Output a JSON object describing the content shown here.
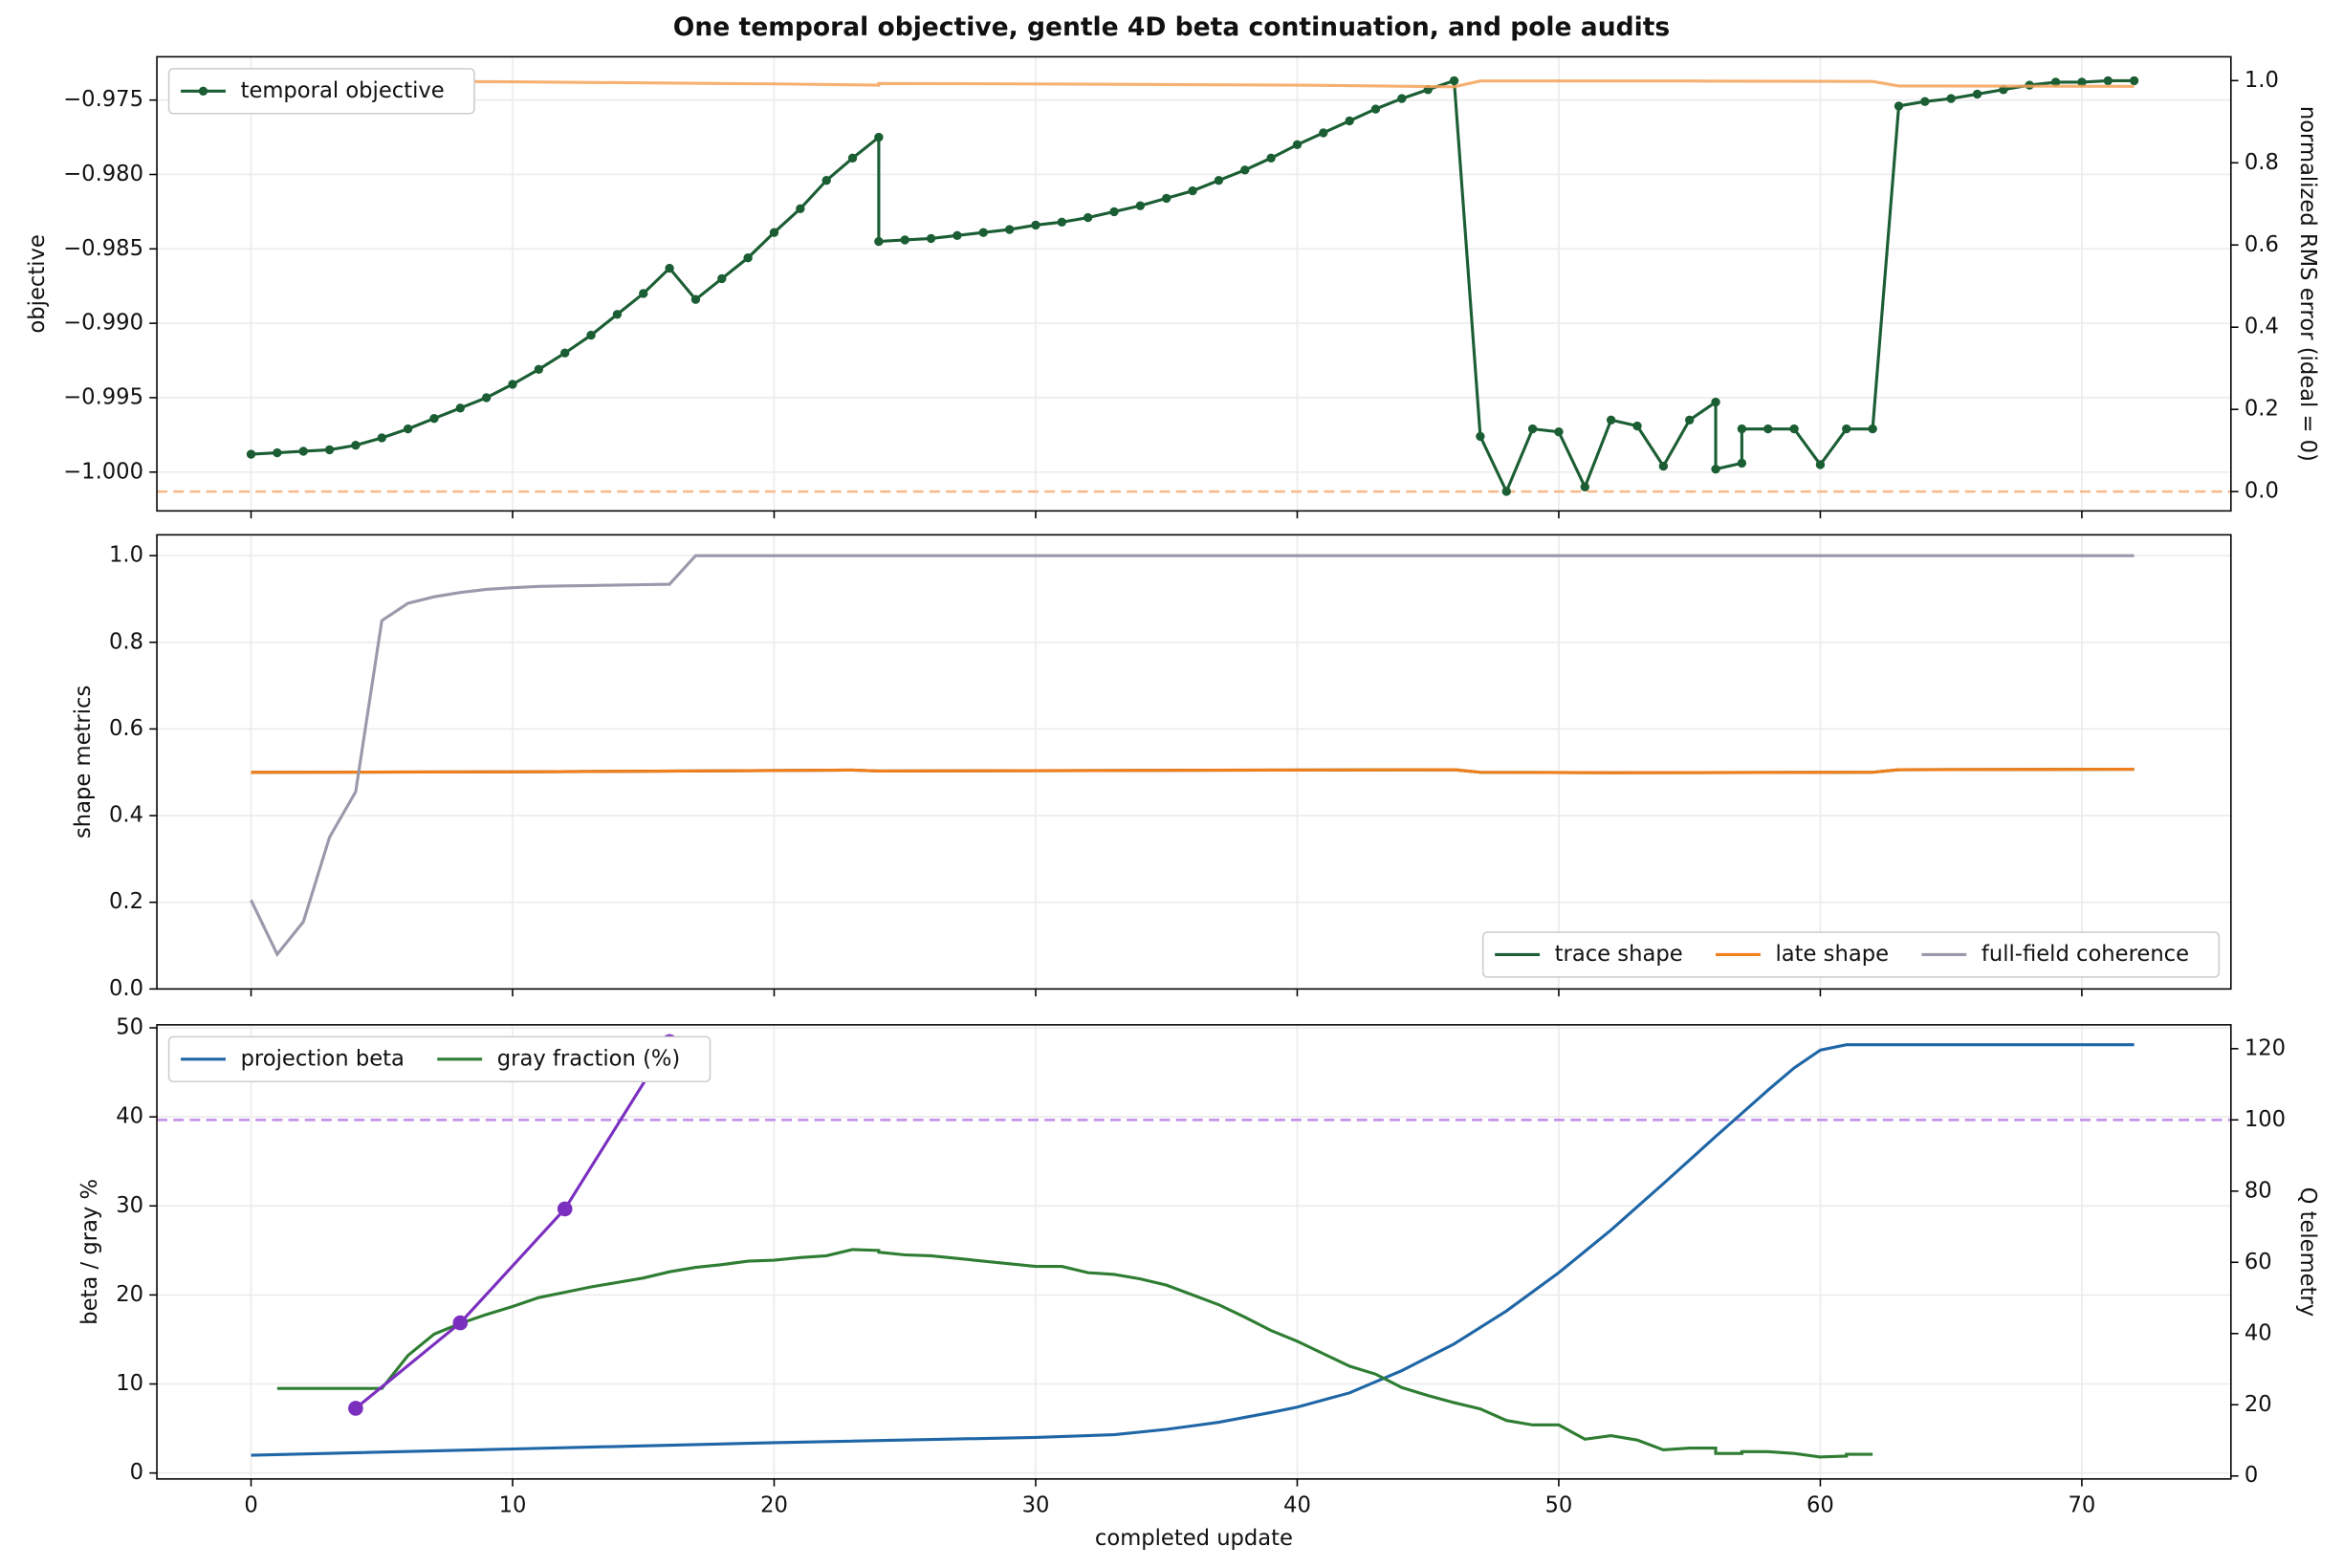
{
  "chart_data": [
    {
      "type": "line",
      "title": "One temporal objective, gentle 4D beta continuation, and pole audits",
      "ylabel": "objective",
      "y2label": "normalized RMS error (ideal = 0)",
      "xlim": [
        -3.6,
        75.7
      ],
      "xticks": [
        0,
        10,
        20,
        30,
        40,
        50,
        60,
        70
      ],
      "xtick_labels": false,
      "ylim": [
        -1.00261,
        -0.97209
      ],
      "yticks": [
        {
          "value": -0.975,
          "label": "−0.975"
        },
        {
          "value": -0.98,
          "label": "−0.980"
        },
        {
          "value": -0.985,
          "label": "−0.985"
        },
        {
          "value": -0.99,
          "label": "−0.990"
        },
        {
          "value": -0.995,
          "label": "−0.995"
        },
        {
          "value": -1.0,
          "label": "−1.000"
        }
      ],
      "y2lim": [
        -0.047,
        1.058
      ],
      "y2ticks": [
        {
          "value": 0,
          "label": "0.0"
        },
        0.2,
        0.4,
        0.6,
        0.8,
        {
          "value": 1,
          "label": "1.0"
        }
      ],
      "grid": true,
      "legend": {
        "loc": "upper left",
        "ncol": 1
      },
      "hlines": [
        {
          "value": 0,
          "axis": "y2",
          "color": "#f8b98a"
        }
      ],
      "series": [
        {
          "name": "temporal objective",
          "color": "#1b5e34",
          "marker_size": 3,
          "x": [
            0,
            1,
            2,
            3,
            4,
            5,
            6,
            7,
            8,
            9,
            10,
            11,
            12,
            13,
            14,
            15,
            16,
            17,
            18,
            19,
            20,
            21,
            22,
            23,
            24,
            24,
            25,
            26,
            27,
            28,
            29,
            30,
            31,
            32,
            33,
            34,
            35,
            36,
            37,
            38,
            39,
            40,
            41,
            42,
            43,
            44,
            45,
            46,
            47,
            48,
            49,
            50,
            51,
            52,
            53,
            54,
            55,
            56,
            56,
            57,
            57,
            58,
            59,
            60,
            61,
            62,
            63,
            64,
            65,
            66,
            67,
            68,
            69,
            70,
            71,
            72
          ],
          "values": [
            -0.9988,
            -0.9987,
            -0.9986,
            -0.9985,
            -0.9982,
            -0.9977,
            -0.9971,
            -0.9964,
            -0.9957,
            -0.995,
            -0.9941,
            -0.9931,
            -0.992,
            -0.9908,
            -0.9894,
            -0.988,
            -0.9863,
            -0.9884,
            -0.987,
            -0.9856,
            -0.9839,
            -0.9823,
            -0.9804,
            -0.9789,
            -0.9775,
            -0.9845,
            -0.9844,
            -0.9843,
            -0.9841,
            -0.9839,
            -0.9837,
            -0.9834,
            -0.9832,
            -0.9829,
            -0.9825,
            -0.9821,
            -0.9816,
            -0.9811,
            -0.9804,
            -0.9797,
            -0.9789,
            -0.978,
            -0.9772,
            -0.9764,
            -0.9756,
            -0.9749,
            -0.9743,
            -0.9737,
            -0.9976,
            -1.0013,
            -0.9971,
            -0.9973,
            -1.001,
            -0.9965,
            -0.9969,
            -0.9996,
            -0.9965,
            -0.9953,
            -0.9998,
            -0.9994,
            -0.9971,
            -0.9971,
            -0.9971,
            -0.9995,
            -0.9971,
            -0.9971,
            -0.9754,
            -0.9751,
            -0.9749,
            -0.9746,
            -0.9743,
            -0.974,
            -0.9738,
            -0.9738,
            -0.9737,
            -0.9737
          ]
        },
        {
          "color": "#f4a259",
          "axis": "y2",
          "x": [
            1,
            10,
            20,
            24,
            24,
            30,
            40,
            46,
            47,
            55,
            62,
            63,
            72
          ],
          "values": [
            1.0,
            0.997,
            0.992,
            0.989,
            0.993,
            0.992,
            0.989,
            0.985,
            0.999,
            0.999,
            0.998,
            0.987,
            0.986
          ]
        }
      ]
    },
    {
      "type": "line",
      "ylabel": "shape metrics",
      "xlim": [
        -3.6,
        75.7
      ],
      "xticks": [
        0,
        10,
        20,
        30,
        40,
        50,
        60,
        70
      ],
      "xtick_labels": false,
      "ylim": [
        0,
        1.048
      ],
      "yticks": [
        {
          "value": 0,
          "label": "0.0"
        },
        0.2,
        0.4,
        0.6,
        0.8,
        {
          "value": 1,
          "label": "1.0"
        }
      ],
      "grid": true,
      "legend": {
        "loc": "lower right",
        "ncol": 3
      },
      "series": [
        {
          "name": "trace shape",
          "color": "#1b5e34",
          "x": [
            0,
            10,
            23,
            24,
            46,
            47,
            52,
            62,
            63,
            72
          ],
          "values": [
            0.5,
            0.501,
            0.505,
            0.503,
            0.506,
            0.5,
            0.499,
            0.5,
            0.506,
            0.507
          ]
        },
        {
          "name": "late shape",
          "color": "#f07f1c",
          "x": [
            0,
            10,
            23,
            24,
            46,
            47,
            52,
            62,
            63,
            72
          ],
          "values": [
            0.5,
            0.501,
            0.505,
            0.503,
            0.506,
            0.5,
            0.499,
            0.5,
            0.506,
            0.507
          ]
        },
        {
          "name": "full-field coherence",
          "color": "#9a98aa",
          "x": [
            0,
            1,
            2,
            3,
            4,
            5,
            6,
            7,
            8,
            9,
            10,
            11,
            12,
            13,
            14,
            15,
            16,
            17,
            72
          ],
          "values": [
            0.205,
            0.08,
            0.155,
            0.35,
            0.455,
            0.85,
            0.89,
            0.905,
            0.915,
            0.922,
            0.926,
            0.929,
            0.93,
            0.931,
            0.932,
            0.933,
            0.934,
            1.0,
            1.0
          ]
        }
      ]
    },
    {
      "type": "line",
      "xlabel": "completed update",
      "ylabel": "beta / gray %",
      "y2label": "Q telemetry",
      "xlim": [
        -3.6,
        75.7
      ],
      "xticks": [
        0,
        10,
        20,
        30,
        40,
        50,
        60,
        70
      ],
      "xtick_labels": true,
      "ylim": [
        -0.67,
        50.34
      ],
      "yticks": [
        0,
        10,
        20,
        30,
        40,
        50
      ],
      "y2lim": [
        -0.84,
        126.7
      ],
      "y2ticks": [
        0,
        20,
        40,
        60,
        80,
        100,
        120
      ],
      "grid": true,
      "legend": {
        "loc": "upper left",
        "ncol": 2
      },
      "hlines": [
        {
          "value": 100,
          "axis": "y2",
          "color": "#c08be8"
        }
      ],
      "series": [
        {
          "name": "projection beta",
          "color": "#1f66a6",
          "x": [
            0,
            10,
            20,
            30,
            33,
            35,
            37,
            39,
            40,
            42,
            44,
            46,
            48,
            50,
            52,
            54,
            56,
            58,
            59,
            60,
            61,
            72
          ],
          "values": [
            2.0,
            2.7,
            3.4,
            4.0,
            4.3,
            4.9,
            5.7,
            6.8,
            7.4,
            9.0,
            11.5,
            14.5,
            18.2,
            22.5,
            27.3,
            32.5,
            37.8,
            43.0,
            45.5,
            47.5,
            48.1,
            48.1
          ]
        },
        {
          "name": "gray fraction (%)",
          "color": "#2e7d32",
          "x": [
            1,
            5,
            6,
            7,
            8,
            9,
            10,
            11,
            12,
            13,
            14,
            15,
            16,
            17,
            18,
            19,
            20,
            21,
            22,
            23,
            24,
            24,
            25,
            26,
            27,
            28,
            29,
            30,
            31,
            32,
            33,
            34,
            35,
            36,
            37,
            38,
            39,
            40,
            41,
            42,
            43,
            44,
            45,
            46,
            47,
            48,
            49,
            50,
            51,
            52,
            53,
            54,
            55,
            56,
            56,
            57,
            57,
            58,
            59,
            60,
            61,
            61,
            62
          ],
          "values": [
            9.5,
            9.5,
            13.2,
            15.6,
            16.8,
            17.8,
            18.7,
            19.7,
            20.3,
            20.9,
            21.4,
            21.9,
            22.6,
            23.1,
            23.4,
            23.8,
            23.9,
            24.2,
            24.4,
            25.1,
            25.0,
            24.8,
            24.5,
            24.4,
            24.1,
            23.8,
            23.5,
            23.2,
            23.2,
            22.5,
            22.3,
            21.8,
            21.1,
            20.0,
            18.9,
            17.5,
            16.0,
            14.8,
            13.4,
            12.0,
            11.1,
            9.6,
            8.7,
            7.9,
            7.2,
            5.9,
            5.4,
            5.4,
            3.8,
            4.2,
            3.7,
            2.6,
            2.8,
            2.8,
            2.2,
            2.2,
            2.4,
            2.4,
            2.2,
            1.8,
            1.9,
            2.1,
            2.1
          ]
        },
        {
          "color": "#7b2fbf",
          "axis": "y2",
          "marker_size": 5,
          "x": [
            4,
            8,
            12,
            16
          ],
          "values": [
            19,
            43,
            75,
            122
          ]
        }
      ]
    }
  ]
}
